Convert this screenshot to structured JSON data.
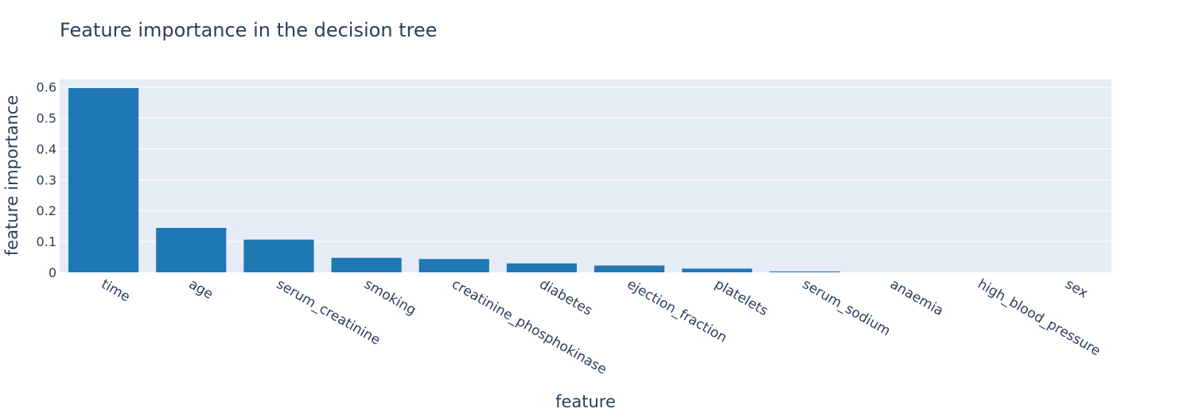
{
  "chart_data": {
    "type": "bar",
    "title": "Feature importance in the decision tree",
    "xlabel": "feature",
    "ylabel": "feature importance",
    "categories": [
      "time",
      "age",
      "serum_creatinine",
      "smoking",
      "creatinine_phosphokinase",
      "diabetes",
      "ejection_fraction",
      "platelets",
      "serum_sodium",
      "anaemia",
      "high_blood_pressure",
      "sex"
    ],
    "values": [
      0.597,
      0.144,
      0.106,
      0.047,
      0.043,
      0.029,
      0.022,
      0.012,
      0.003,
      0.0,
      0.0,
      0.0
    ],
    "ylim": [
      0,
      0.625
    ],
    "yticks": [
      0,
      0.1,
      0.2,
      0.3,
      0.4,
      0.5,
      0.6
    ],
    "ytick_labels": [
      "0",
      "0.1",
      "0.2",
      "0.3",
      "0.4",
      "0.5",
      "0.6"
    ],
    "grid": true,
    "bar_color": "#1f77b4",
    "plot_background": "#e5ecf6",
    "text_color": "#2a3f5f"
  }
}
